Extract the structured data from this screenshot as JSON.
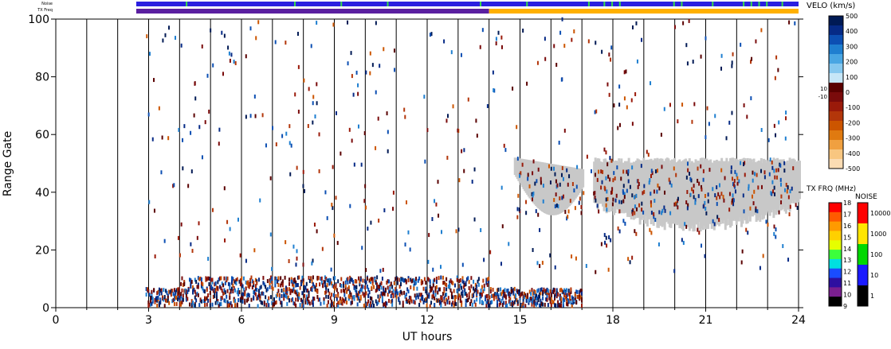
{
  "chart_data": {
    "type": "heatmap",
    "title": "",
    "xlabel": "UT hours",
    "ylabel": "Range Gate",
    "xlim": [
      0,
      24
    ],
    "ylim": [
      0,
      100
    ],
    "x_ticks": [
      "0",
      "3",
      "6",
      "9",
      "12",
      "15",
      "18",
      "21",
      "24"
    ],
    "y_ticks": [
      "0",
      "20",
      "40",
      "60",
      "80",
      "100"
    ],
    "top_bars": {
      "noise_label": "Noise",
      "txfreq_label": "TX Freq",
      "start_hour": 2.6,
      "txfreq_switch_hour": 14.0,
      "colors": {
        "noise": "#2a1fe0",
        "noise_high": "#37d94a",
        "txfreq_low": "#5a1fa0",
        "txfreq_high": "#ffb000"
      }
    },
    "velocity_scale": {
      "label": "VELO (km/s)",
      "ticks": [
        "500",
        "400",
        "300",
        "200",
        "100",
        "0",
        "-100",
        "-200",
        "-300",
        "-400",
        "-500"
      ],
      "ground_scatter_ticks": [
        "10",
        "-10"
      ],
      "colors_positive": [
        "#c6e6f7",
        "#86c8ef",
        "#49a6e3",
        "#1f7fd0",
        "#0c4fb3",
        "#062a86",
        "#001a55"
      ],
      "colors_negative": [
        "#5a0000",
        "#7a0b0b",
        "#9a1a0a",
        "#b3360a",
        "#cc5500",
        "#e07a10",
        "#f0a040",
        "#f8c680",
        "#fbdcb3"
      ]
    },
    "txfreq_scale": {
      "label": "TX FRQ (MHz)",
      "ticks": [
        "18",
        "17",
        "16",
        "15",
        "14",
        "13",
        "12",
        "11",
        "10",
        "9"
      ],
      "colors": [
        "#ff0000",
        "#ff5a00",
        "#ff9a00",
        "#ffd000",
        "#e6ff00",
        "#3cff3c",
        "#00e0e0",
        "#1a4cff",
        "#2d0fa0",
        "#7a1f8f",
        "#000000"
      ]
    },
    "noise_scale": {
      "label": "NOISE",
      "ticks": [
        "10000",
        "1000",
        "100",
        "10",
        "1"
      ],
      "colors": [
        "#ff0000",
        "#ffe600",
        "#00d800",
        "#1a1aff",
        "#000000"
      ]
    },
    "series": [
      {
        "name": "ground_scatter",
        "region": "gray band near gates 30-55",
        "hours": [
          14.8,
          17.0,
          17.3,
          24.0
        ]
      },
      {
        "name": "low_gate_echoes",
        "gates": [
          0,
          10
        ],
        "hours": [
          2.9,
          17.0
        ]
      }
    ]
  }
}
